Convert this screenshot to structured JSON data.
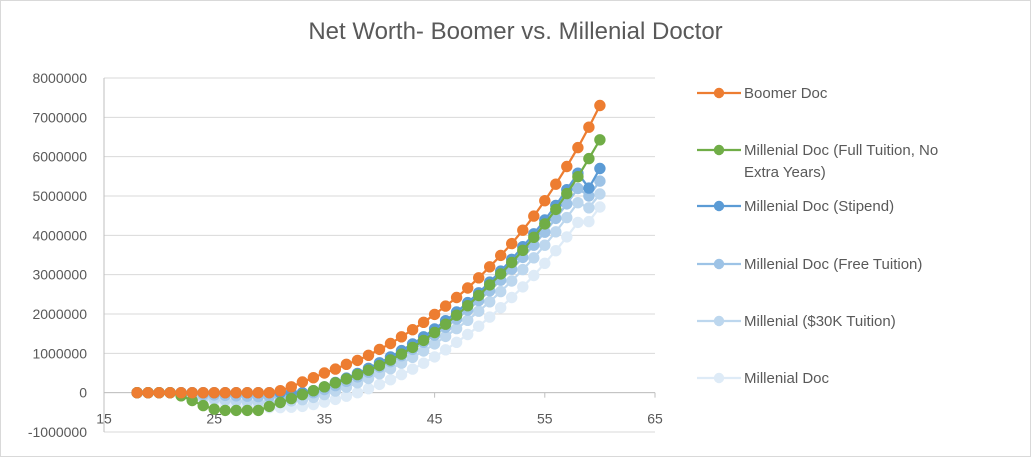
{
  "chart_data": {
    "type": "scatter",
    "title": "Net Worth- Boomer vs. Millenial Doctor",
    "xlabel": "",
    "ylabel": "",
    "xlim": [
      15,
      65
    ],
    "ylim": [
      -1000000,
      8000000
    ],
    "x_ticks": [
      "15",
      "25",
      "35",
      "45",
      "55",
      "65"
    ],
    "y_ticks": [
      "-1000000",
      "0",
      "1000000",
      "2000000",
      "3000000",
      "4000000",
      "5000000",
      "6000000",
      "7000000",
      "8000000"
    ],
    "grid": "horizontal",
    "legend_position": "right",
    "series": [
      {
        "name": "Boomer Doc",
        "color": "#ED7D31",
        "x": [
          18,
          19,
          20,
          21,
          22,
          23,
          24,
          25,
          26,
          27,
          28,
          29,
          30,
          31,
          32,
          33,
          34,
          35,
          36,
          37,
          38,
          39,
          40,
          41,
          42,
          43,
          44,
          45,
          46,
          47,
          48,
          49,
          50,
          51,
          52,
          53,
          54,
          55,
          56,
          57,
          58,
          59,
          60
        ],
        "y": [
          0,
          0,
          0,
          0,
          0,
          0,
          0,
          0,
          0,
          0,
          0,
          0,
          0,
          50000,
          150000,
          270000,
          380000,
          500000,
          600000,
          720000,
          820000,
          950000,
          1100000,
          1250000,
          1420000,
          1600000,
          1790000,
          1990000,
          2200000,
          2420000,
          2660000,
          2920000,
          3200000,
          3490000,
          3790000,
          4130000,
          4490000,
          4880000,
          5300000,
          5750000,
          6230000,
          6750000,
          7300000
        ]
      },
      {
        "name": "Millenial Doc (Full Tuition, No Extra Years)",
        "color": "#70AD47",
        "x": [
          18,
          19,
          20,
          21,
          22,
          23,
          24,
          25,
          26,
          27,
          28,
          29,
          30,
          31,
          32,
          33,
          34,
          35,
          36,
          37,
          38,
          39,
          40,
          41,
          42,
          43,
          44,
          45,
          46,
          47,
          48,
          49,
          50,
          51,
          52,
          53,
          54,
          55,
          56,
          57,
          58,
          59,
          60
        ],
        "y": [
          0,
          0,
          0,
          0,
          -80000,
          -200000,
          -330000,
          -420000,
          -450000,
          -450000,
          -450000,
          -450000,
          -350000,
          -250000,
          -150000,
          -50000,
          50000,
          150000,
          250000,
          350000,
          460000,
          570000,
          690000,
          830000,
          980000,
          1150000,
          1330000,
          1530000,
          1740000,
          1970000,
          2210000,
          2470000,
          2740000,
          3020000,
          3310000,
          3620000,
          3950000,
          4290000,
          4660000,
          5060000,
          5490000,
          5950000,
          6430000
        ]
      },
      {
        "name": "Millenial Doc (Stipend)",
        "color": "#5B9BD5",
        "x": [
          18,
          19,
          20,
          21,
          22,
          23,
          24,
          25,
          26,
          27,
          28,
          29,
          30,
          31,
          32,
          33,
          34,
          35,
          36,
          37,
          38,
          39,
          40,
          41,
          42,
          43,
          44,
          45,
          46,
          47,
          48,
          49,
          50,
          51,
          52,
          53,
          54,
          55,
          56,
          57,
          58,
          59,
          60
        ],
        "y": [
          0,
          0,
          0,
          0,
          0,
          0,
          0,
          0,
          0,
          0,
          0,
          0,
          0,
          0,
          0,
          0,
          50000,
          150000,
          260000,
          370000,
          490000,
          620000,
          760000,
          910000,
          1070000,
          1240000,
          1420000,
          1620000,
          1830000,
          2050000,
          2290000,
          2540000,
          2810000,
          3090000,
          3390000,
          3710000,
          4040000,
          4390000,
          4760000,
          5160000,
          5580000,
          5200000,
          5700000
        ]
      },
      {
        "name": "Millenial Doc (Free Tuition)",
        "color": "#9DC3E6",
        "x": [
          18,
          19,
          20,
          21,
          22,
          23,
          24,
          25,
          26,
          27,
          28,
          29,
          30,
          31,
          32,
          33,
          34,
          35,
          36,
          37,
          38,
          39,
          40,
          41,
          42,
          43,
          44,
          45,
          46,
          47,
          48,
          49,
          50,
          51,
          52,
          53,
          54,
          55,
          56,
          57,
          58,
          59,
          60
        ],
        "y": [
          0,
          0,
          0,
          0,
          0,
          0,
          -50000,
          -60000,
          -70000,
          -80000,
          -90000,
          -100000,
          -100000,
          -90000,
          -80000,
          -50000,
          0,
          80000,
          180000,
          290000,
          400000,
          520000,
          650000,
          790000,
          940000,
          1100000,
          1280000,
          1460000,
          1660000,
          1870000,
          2100000,
          2340000,
          2590000,
          2860000,
          3140000,
          3440000,
          3750000,
          4080000,
          4430000,
          4800000,
          5190000,
          5000000,
          5380000
        ]
      },
      {
        "name": "Millenial ($30K Tuition)",
        "color": "#BDD7EE",
        "x": [
          18,
          19,
          20,
          21,
          22,
          23,
          24,
          25,
          26,
          27,
          28,
          29,
          30,
          31,
          32,
          33,
          34,
          35,
          36,
          37,
          38,
          39,
          40,
          41,
          42,
          43,
          44,
          45,
          46,
          47,
          48,
          49,
          50,
          51,
          52,
          53,
          54,
          55,
          56,
          57,
          58,
          59,
          60
        ],
        "y": [
          0,
          0,
          0,
          0,
          -40000,
          -80000,
          -120000,
          -160000,
          -190000,
          -210000,
          -230000,
          -240000,
          -240000,
          -230000,
          -210000,
          -180000,
          -120000,
          -50000,
          40000,
          140000,
          250000,
          360000,
          480000,
          610000,
          750000,
          900000,
          1060000,
          1240000,
          1430000,
          1630000,
          1840000,
          2070000,
          2310000,
          2570000,
          2840000,
          3130000,
          3430000,
          3750000,
          4090000,
          4450000,
          4830000,
          4700000,
          5050000
        ]
      },
      {
        "name": "Millenial Doc",
        "color": "#DEEBF7",
        "x": [
          18,
          19,
          20,
          21,
          22,
          23,
          24,
          25,
          26,
          27,
          28,
          29,
          30,
          31,
          32,
          33,
          34,
          35,
          36,
          37,
          38,
          39,
          40,
          41,
          42,
          43,
          44,
          45,
          46,
          47,
          48,
          49,
          50,
          51,
          52,
          53,
          54,
          55,
          56,
          57,
          58,
          59,
          60
        ],
        "y": [
          0,
          0,
          0,
          0,
          -50000,
          -100000,
          -160000,
          -220000,
          -280000,
          -320000,
          -350000,
          -370000,
          -380000,
          -380000,
          -370000,
          -350000,
          -300000,
          -240000,
          -170000,
          -90000,
          0,
          100000,
          210000,
          330000,
          460000,
          600000,
          750000,
          910000,
          1090000,
          1280000,
          1480000,
          1690000,
          1920000,
          2160000,
          2420000,
          2690000,
          2980000,
          3290000,
          3610000,
          3960000,
          4330000,
          4350000,
          4720000
        ]
      }
    ]
  }
}
